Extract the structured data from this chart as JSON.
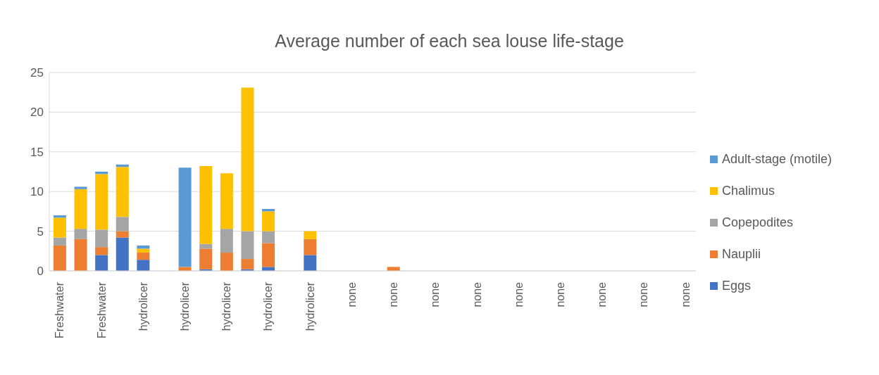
{
  "chart_data": {
    "type": "bar",
    "title": "Average number of each sea louse life-stage",
    "categories": [
      "Freshwater",
      null,
      "Freshwater",
      null,
      "hydrolicer",
      null,
      "hydrolicer",
      null,
      "hydrolicer",
      null,
      "hydrolicer",
      null,
      "hydrolicer",
      null,
      "none",
      null,
      "none",
      null,
      "none",
      null,
      "none",
      null,
      "none",
      null,
      "none",
      null,
      "none",
      null,
      "none",
      null,
      "none"
    ],
    "stacked": true,
    "ylim": [
      0,
      25
    ],
    "yticks": [
      0,
      5,
      10,
      15,
      20,
      25
    ],
    "grid": "y",
    "legend": "right",
    "series": [
      {
        "name": "Eggs",
        "color": "#4472c4",
        "values": [
          null,
          null,
          2.0,
          4.2,
          1.4,
          null,
          null,
          0.2,
          null,
          0.2,
          0.5,
          null,
          2.0,
          null,
          null,
          null,
          null,
          null,
          null,
          null,
          null,
          null,
          null,
          null,
          null,
          null,
          null,
          null,
          null,
          null,
          null
        ]
      },
      {
        "name": "Nauplii",
        "color": "#ed7d31",
        "values": [
          3.2,
          4.0,
          1.0,
          0.8,
          0.9,
          null,
          0.5,
          2.6,
          2.3,
          1.3,
          3.0,
          null,
          2.0,
          null,
          null,
          null,
          0.5,
          null,
          null,
          null,
          null,
          null,
          null,
          null,
          null,
          null,
          null,
          null,
          null,
          null,
          null
        ]
      },
      {
        "name": "Copepodites",
        "color": "#a5a5a5",
        "values": [
          1.0,
          1.3,
          2.2,
          1.8,
          null,
          null,
          null,
          0.6,
          3.0,
          3.5,
          1.5,
          null,
          null,
          null,
          null,
          null,
          null,
          null,
          null,
          null,
          null,
          null,
          null,
          null,
          null,
          null,
          null,
          null,
          null,
          null,
          null
        ]
      },
      {
        "name": "Chalimus",
        "color": "#ffc000",
        "values": [
          2.5,
          5.0,
          7.0,
          6.3,
          0.5,
          null,
          null,
          9.8,
          7.0,
          18.1,
          2.5,
          null,
          1.0,
          null,
          null,
          null,
          null,
          null,
          null,
          null,
          null,
          null,
          null,
          null,
          null,
          null,
          null,
          null,
          null,
          null,
          null
        ]
      },
      {
        "name": "Adult-stage (motile)",
        "color": "#5b9bd5",
        "values": [
          0.3,
          0.3,
          0.3,
          0.3,
          0.4,
          null,
          12.5,
          null,
          null,
          null,
          0.3,
          null,
          null,
          null,
          null,
          null,
          null,
          null,
          null,
          null,
          null,
          null,
          null,
          null,
          null,
          null,
          null,
          null,
          null,
          null,
          null
        ]
      }
    ]
  }
}
